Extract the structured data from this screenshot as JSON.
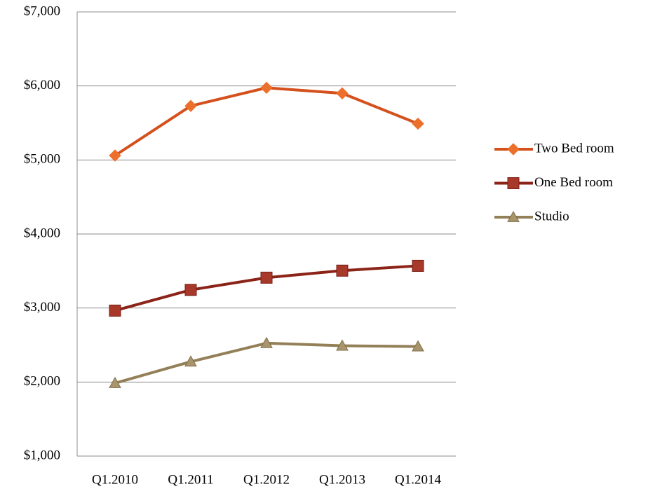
{
  "chart_data": {
    "type": "line",
    "categories": [
      "Q1.2010",
      "Q1.2011",
      "Q1.2012",
      "Q1.2013",
      "Q1.2014"
    ],
    "series": [
      {
        "name": "Two Bed room",
        "color": "#d4501c",
        "marker_color": "#ec6f2c",
        "marker": "diamond",
        "values": [
          5060,
          5730,
          5975,
          5900,
          5490
        ]
      },
      {
        "name": "One Bed room",
        "color": "#8b2318",
        "marker_color": "#a8392a",
        "marker": "square",
        "values": [
          2965,
          3245,
          3410,
          3505,
          3570
        ]
      },
      {
        "name": "Studio",
        "color": "#938058",
        "marker_color": "#a8956c",
        "marker": "triangle",
        "values": [
          1985,
          2275,
          2525,
          2490,
          2480
        ]
      }
    ],
    "ylim": [
      1000,
      7000
    ],
    "yticks": [
      {
        "value": 1000,
        "label": "$1,000"
      },
      {
        "value": 2000,
        "label": "$2,000"
      },
      {
        "value": 3000,
        "label": "$3,000"
      },
      {
        "value": 4000,
        "label": "$4,000"
      },
      {
        "value": 5000,
        "label": "$5,000"
      },
      {
        "value": 6000,
        "label": "$6,000"
      },
      {
        "value": 7000,
        "label": "$7,000"
      }
    ],
    "grid": true,
    "legend": "right"
  }
}
